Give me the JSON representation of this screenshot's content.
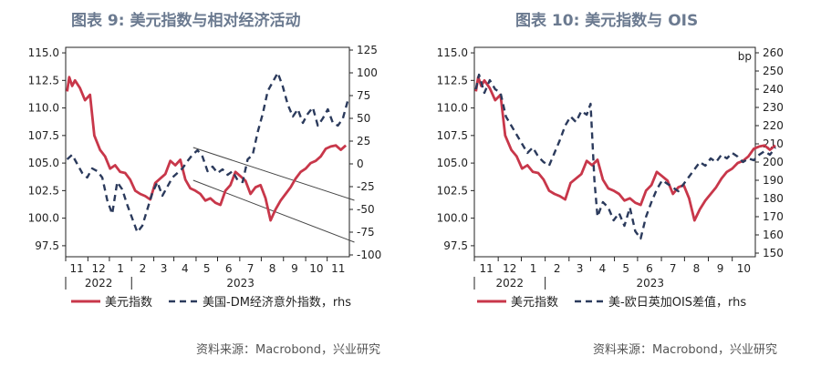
{
  "titles": [
    "图表 9:  美元指数与相对经济活动",
    "图表 10: 美元指数与 OIS"
  ],
  "sources": [
    "资料来源：Macrobond，兴业研究",
    "资料来源：Macrobond，兴业研究"
  ],
  "colors": {
    "red": "#c8374a",
    "navy": "#2b3a5c",
    "trend": "#444444",
    "title": "#6b7a90"
  },
  "chart_data": [
    {
      "type": "line",
      "title": "",
      "x_axis": {
        "month_ticks": [
          "11",
          "12",
          "1",
          "2",
          "3",
          "4",
          "5",
          "6",
          "7",
          "8",
          "9",
          "10",
          "11"
        ],
        "year_labels": [
          "2022",
          "2023"
        ],
        "range": [
          "2022-10",
          "2023-11"
        ]
      },
      "y_left": {
        "ticks": [
          "115.0",
          "112.5",
          "110.0",
          "107.5",
          "105.0",
          "102.5",
          "100.0",
          "97.5"
        ],
        "range": [
          96.5,
          115.5
        ]
      },
      "y_right": {
        "ticks": [
          "125",
          "100",
          "75",
          "50",
          "25",
          "0",
          "-25",
          "-50",
          "-75",
          "-100"
        ],
        "range": [
          -102,
          128
        ],
        "unit": ""
      },
      "legend": [
        "美元指数",
        "美国-DM经济意外指数，rhs"
      ],
      "legend_position": "bottom",
      "series": [
        {
          "name": "美元指数",
          "axis": "left",
          "style": "solid",
          "x": [
            "2022-10-03",
            "2022-10-06",
            "2022-10-10",
            "2022-10-14",
            "2022-10-21",
            "2022-10-28",
            "2022-11-04",
            "2022-11-10",
            "2022-11-18",
            "2022-11-25",
            "2022-12-02",
            "2022-12-09",
            "2022-12-16",
            "2022-12-23",
            "2022-12-30",
            "2023-01-06",
            "2023-01-13",
            "2023-01-20",
            "2023-01-27",
            "2023-02-03",
            "2023-02-10",
            "2023-02-17",
            "2023-02-24",
            "2023-03-03",
            "2023-03-10",
            "2023-03-17",
            "2023-03-24",
            "2023-03-31",
            "2023-04-07",
            "2023-04-14",
            "2023-04-21",
            "2023-04-28",
            "2023-05-05",
            "2023-05-12",
            "2023-05-19",
            "2023-05-26",
            "2023-06-02",
            "2023-06-09",
            "2023-06-16",
            "2023-06-23",
            "2023-06-30",
            "2023-07-07",
            "2023-07-14",
            "2023-07-21",
            "2023-07-28",
            "2023-08-04",
            "2023-08-11",
            "2023-08-18",
            "2023-08-25",
            "2023-09-01",
            "2023-09-08",
            "2023-09-15",
            "2023-09-22",
            "2023-09-29",
            "2023-10-06",
            "2023-10-13",
            "2023-10-20",
            "2023-10-27"
          ],
          "values": [
            111.5,
            112.8,
            112.0,
            112.5,
            111.8,
            110.7,
            111.2,
            107.5,
            106.2,
            105.6,
            104.5,
            104.8,
            104.2,
            104.1,
            103.5,
            102.5,
            102.2,
            102.0,
            101.7,
            103.2,
            103.6,
            104.0,
            105.2,
            104.8,
            105.3,
            103.5,
            102.7,
            102.5,
            102.2,
            101.6,
            101.8,
            101.4,
            101.2,
            102.5,
            103.0,
            104.2,
            103.8,
            103.4,
            102.2,
            102.8,
            103.0,
            101.8,
            99.8,
            100.8,
            101.6,
            102.2,
            102.8,
            103.6,
            104.2,
            104.5,
            105.0,
            105.2,
            105.6,
            106.3,
            106.5,
            106.6,
            106.2,
            106.6
          ]
        },
        {
          "name": "美国-DM经济意外指数，rhs",
          "axis": "right",
          "style": "dashed",
          "x": [
            "2022-10-03",
            "2022-10-10",
            "2022-10-17",
            "2022-10-24",
            "2022-10-31",
            "2022-11-07",
            "2022-11-14",
            "2022-11-21",
            "2022-11-28",
            "2022-12-05",
            "2022-12-12",
            "2022-12-19",
            "2022-12-26",
            "2023-01-02",
            "2023-01-09",
            "2023-01-16",
            "2023-01-23",
            "2023-01-30",
            "2023-02-06",
            "2023-02-13",
            "2023-02-20",
            "2023-02-27",
            "2023-03-06",
            "2023-03-13",
            "2023-03-20",
            "2023-03-27",
            "2023-04-03",
            "2023-04-10",
            "2023-04-17",
            "2023-04-24",
            "2023-05-01",
            "2023-05-08",
            "2023-05-15",
            "2023-05-22",
            "2023-05-29",
            "2023-06-05",
            "2023-06-12",
            "2023-06-19",
            "2023-06-26",
            "2023-07-03",
            "2023-07-10",
            "2023-07-17",
            "2023-07-24",
            "2023-07-31",
            "2023-08-07",
            "2023-08-14",
            "2023-08-21",
            "2023-08-28",
            "2023-09-04",
            "2023-09-11",
            "2023-09-18",
            "2023-09-25",
            "2023-10-02",
            "2023-10-09",
            "2023-10-16",
            "2023-10-23",
            "2023-10-30"
          ],
          "values": [
            5,
            10,
            0,
            -10,
            -15,
            -5,
            -8,
            -15,
            -40,
            -55,
            -20,
            -28,
            -45,
            -60,
            -75,
            -68,
            -50,
            -32,
            -20,
            -35,
            -25,
            -15,
            -10,
            -5,
            3,
            10,
            15,
            8,
            -8,
            -3,
            -10,
            -6,
            -12,
            -8,
            -18,
            -20,
            5,
            10,
            35,
            55,
            80,
            90,
            100,
            85,
            65,
            52,
            60,
            45,
            55,
            62,
            42,
            50,
            60,
            45,
            42,
            50,
            70
          ]
        }
      ],
      "trend_lines": [
        {
          "from": [
            "2023-03-28",
            18
          ],
          "to": [
            "2023-11-08",
            -40
          ]
        },
        {
          "from": [
            "2023-03-28",
            -18
          ],
          "to": [
            "2023-11-08",
            -86
          ]
        }
      ]
    },
    {
      "type": "line",
      "title": "",
      "x_axis": {
        "month_ticks": [
          "11",
          "12",
          "1",
          "2",
          "3",
          "4",
          "5",
          "6",
          "7",
          "8",
          "9",
          "10"
        ],
        "year_labels": [
          "2022",
          "2023"
        ],
        "range": [
          "2022-10",
          "2023-10"
        ]
      },
      "y_left": {
        "ticks": [
          "115.0",
          "112.5",
          "110.0",
          "107.5",
          "105.0",
          "102.5",
          "100.0",
          "97.5"
        ],
        "range": [
          96.5,
          115.5
        ]
      },
      "y_right": {
        "ticks": [
          "260",
          "250",
          "240",
          "230",
          "220",
          "210",
          "200",
          "190",
          "180",
          "170",
          "160",
          "150"
        ],
        "range": [
          148,
          263
        ],
        "unit": "bp"
      },
      "legend": [
        "美元指数",
        "美-欧日英加OIS差值，rhs"
      ],
      "legend_position": "bottom",
      "series": [
        {
          "name": "美元指数",
          "axis": "left",
          "style": "solid",
          "x": [
            "2022-10-03",
            "2022-10-06",
            "2022-10-10",
            "2022-10-14",
            "2022-10-21",
            "2022-10-28",
            "2022-11-04",
            "2022-11-10",
            "2022-11-18",
            "2022-11-25",
            "2022-12-02",
            "2022-12-09",
            "2022-12-16",
            "2022-12-23",
            "2022-12-30",
            "2023-01-06",
            "2023-01-13",
            "2023-01-20",
            "2023-01-27",
            "2023-02-03",
            "2023-02-10",
            "2023-02-17",
            "2023-02-24",
            "2023-03-03",
            "2023-03-10",
            "2023-03-17",
            "2023-03-24",
            "2023-03-31",
            "2023-04-07",
            "2023-04-14",
            "2023-04-21",
            "2023-04-28",
            "2023-05-05",
            "2023-05-12",
            "2023-05-19",
            "2023-05-26",
            "2023-06-02",
            "2023-06-09",
            "2023-06-16",
            "2023-06-23",
            "2023-06-30",
            "2023-07-07",
            "2023-07-14",
            "2023-07-21",
            "2023-07-28",
            "2023-08-04",
            "2023-08-11",
            "2023-08-18",
            "2023-08-25",
            "2023-09-01",
            "2023-09-08",
            "2023-09-15",
            "2023-09-22",
            "2023-09-29",
            "2023-10-06",
            "2023-10-13",
            "2023-10-20",
            "2023-10-27"
          ],
          "values": [
            111.5,
            112.8,
            112.0,
            112.5,
            111.8,
            110.7,
            111.2,
            107.5,
            106.2,
            105.6,
            104.5,
            104.8,
            104.2,
            104.1,
            103.5,
            102.5,
            102.2,
            102.0,
            101.7,
            103.2,
            103.6,
            104.0,
            105.2,
            104.8,
            105.3,
            103.5,
            102.7,
            102.5,
            102.2,
            101.6,
            101.8,
            101.4,
            101.2,
            102.5,
            103.0,
            104.2,
            103.8,
            103.4,
            102.2,
            102.8,
            103.0,
            101.8,
            99.8,
            100.8,
            101.6,
            102.2,
            102.8,
            103.6,
            104.2,
            104.5,
            105.0,
            105.2,
            105.6,
            106.3,
            106.5,
            106.6,
            106.2,
            106.6
          ]
        },
        {
          "name": "美-欧日英加OIS差值，rhs",
          "axis": "right",
          "style": "dashed",
          "x": [
            "2022-10-03",
            "2022-10-07",
            "2022-10-14",
            "2022-10-21",
            "2022-10-28",
            "2022-11-04",
            "2022-11-11",
            "2022-11-18",
            "2022-11-25",
            "2022-12-02",
            "2022-12-09",
            "2022-12-16",
            "2022-12-23",
            "2022-12-30",
            "2023-01-06",
            "2023-01-13",
            "2023-01-20",
            "2023-01-27",
            "2023-02-03",
            "2023-02-10",
            "2023-02-17",
            "2023-02-24",
            "2023-03-01",
            "2023-03-06",
            "2023-03-10",
            "2023-03-17",
            "2023-03-24",
            "2023-03-31",
            "2023-04-07",
            "2023-04-14",
            "2023-04-21",
            "2023-04-28",
            "2023-05-05",
            "2023-05-12",
            "2023-05-19",
            "2023-05-26",
            "2023-06-02",
            "2023-06-09",
            "2023-06-16",
            "2023-06-23",
            "2023-06-30",
            "2023-07-07",
            "2023-07-14",
            "2023-07-21",
            "2023-07-28",
            "2023-08-04",
            "2023-08-11",
            "2023-08-18",
            "2023-08-25",
            "2023-09-01",
            "2023-09-08",
            "2023-09-15",
            "2023-09-22",
            "2023-09-29",
            "2023-10-06",
            "2023-10-13",
            "2023-10-20",
            "2023-10-27"
          ],
          "values": [
            240,
            248,
            238,
            245,
            240,
            238,
            225,
            220,
            215,
            210,
            205,
            208,
            203,
            200,
            198,
            205,
            212,
            220,
            225,
            222,
            228,
            226,
            232,
            190,
            170,
            178,
            175,
            168,
            172,
            165,
            175,
            162,
            158,
            170,
            178,
            185,
            190,
            188,
            186,
            184,
            188,
            192,
            196,
            200,
            198,
            202,
            200,
            204,
            202,
            205,
            203,
            200,
            202,
            201,
            204,
            206,
            204,
            208
          ]
        }
      ]
    }
  ]
}
